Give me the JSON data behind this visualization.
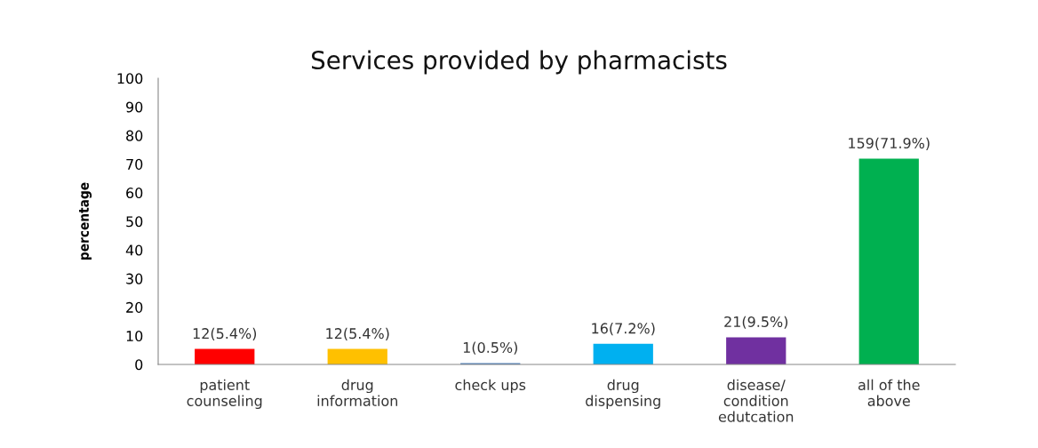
{
  "chart_data": {
    "type": "bar",
    "title": "Services provided by pharmacists",
    "ylabel": "percentage",
    "categories": [
      "patient\ncounseling",
      "drug\ninformation",
      "check ups",
      "drug\ndispensing",
      "disease/\ncondition\nedutcation",
      "all of the\nabove"
    ],
    "values": [
      5.4,
      5.4,
      0.5,
      7.2,
      9.5,
      71.9
    ],
    "colors": [
      "#ff0000",
      "#ffc000",
      "#4f81bd",
      "#00b0f0",
      "#7030a0",
      "#00b050"
    ],
    "value_labels": [
      "12(5.4%)",
      "12(5.4%)",
      "1(0.5%)",
      "16(7.2%)",
      "21(9.5%)",
      "159(71.9%)"
    ],
    "ylim": [
      0,
      100
    ],
    "yticks": [
      0,
      10,
      20,
      30,
      40,
      50,
      60,
      70,
      80,
      90,
      100
    ],
    "grid": false,
    "legend": false
  }
}
